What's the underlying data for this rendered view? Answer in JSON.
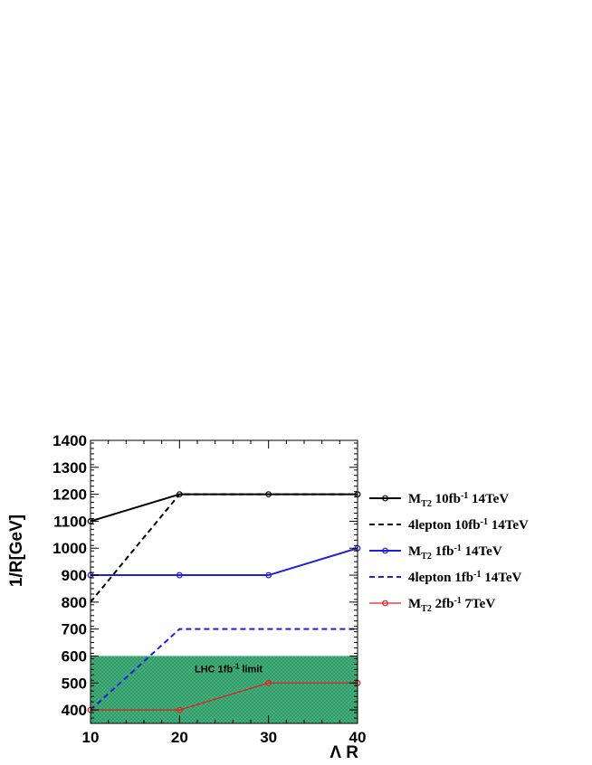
{
  "chart_data": {
    "type": "line",
    "xlabel": "Λ R",
    "ylabel": "1/R[GeV]",
    "xlim": [
      10,
      40
    ],
    "ylim": [
      350,
      1400
    ],
    "x_ticks": [
      10,
      20,
      30,
      40
    ],
    "y_ticks": [
      400,
      500,
      600,
      700,
      800,
      900,
      1000,
      1100,
      1200,
      1300,
      1400
    ],
    "grid": false,
    "legend_position": "right",
    "band": {
      "label_main": "LHC 1fb",
      "label_sup": "-1",
      "label_tail": " limit",
      "y_from": 350,
      "y_to": 600,
      "color": "#2e9e68"
    },
    "series": [
      {
        "name_main": "M",
        "name_sub": "T2",
        "name_mid": " 10fb",
        "name_sup": "-1",
        "name_tail": " 14TeV",
        "color": "#000000",
        "dash": "solid",
        "markers": true,
        "width": 2,
        "x": [
          10,
          20,
          30,
          40
        ],
        "y": [
          1100,
          1200,
          1200,
          1200
        ]
      },
      {
        "name_main": "4lepton",
        "name_sub": "",
        "name_mid": " 10fb",
        "name_sup": "-1",
        "name_tail": " 14TeV",
        "color": "#000000",
        "dash": "dashed",
        "markers": false,
        "width": 2,
        "x": [
          10,
          20,
          30,
          40
        ],
        "y": [
          800,
          1200,
          1200,
          1200
        ]
      },
      {
        "name_main": "M",
        "name_sub": "T2",
        "name_mid": " 1fb",
        "name_sup": "-1",
        "name_tail": " 14TeV",
        "color": "#1f1fe0",
        "dash": "solid",
        "markers": true,
        "width": 2,
        "x": [
          10,
          20,
          30,
          40
        ],
        "y": [
          900,
          900,
          900,
          1000
        ]
      },
      {
        "name_main": "4lepton",
        "name_sub": "",
        "name_mid": " 1fb",
        "name_sup": "-1",
        "name_tail": " 14TeV",
        "color": "#1f1fe0",
        "dash": "dashed",
        "markers": false,
        "width": 2,
        "x": [
          10,
          20,
          30,
          40
        ],
        "y": [
          400,
          700,
          700,
          700
        ]
      },
      {
        "name_main": "M",
        "name_sub": "T2",
        "name_mid": " 2fb",
        "name_sup": "-1",
        "name_tail": " 7TeV",
        "color": "#e02020",
        "dash": "solid",
        "markers": true,
        "width": 1.3,
        "x": [
          10,
          20,
          30,
          40
        ],
        "y": [
          400,
          400,
          500,
          500
        ]
      }
    ]
  }
}
